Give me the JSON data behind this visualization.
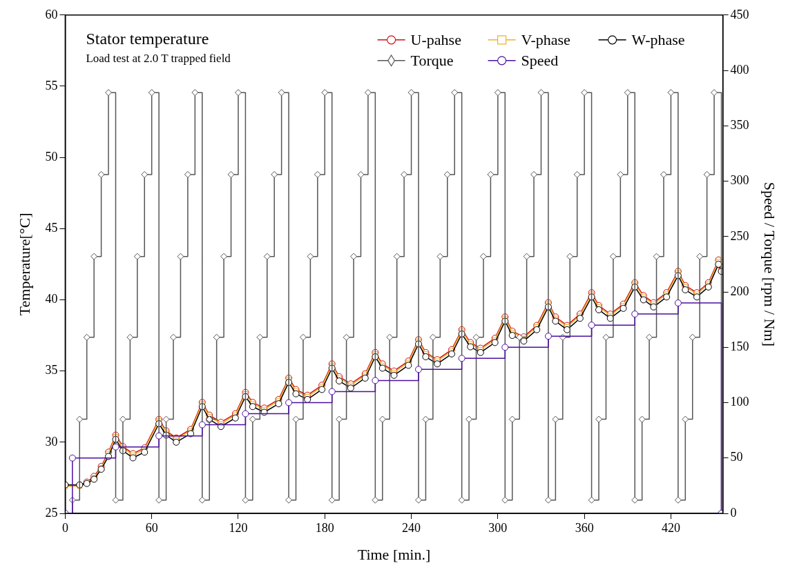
{
  "chart_data": {
    "type": "line",
    "title": "Stator temperature",
    "subtitle": "Load test at 2.0 T trapped field",
    "xlabel": "Time [min.]",
    "ylabel": "Temperature[°C]",
    "y2label": "Speed / Torque [rpm / Nm]",
    "x": [
      0,
      10,
      15,
      20,
      25,
      30,
      35,
      40,
      47,
      55,
      65,
      70,
      77,
      87,
      95,
      100,
      108,
      118,
      125,
      130,
      138,
      148,
      155,
      160,
      168,
      178,
      185,
      190,
      198,
      208,
      215,
      220,
      228,
      238,
      245,
      250,
      258,
      268,
      275,
      281,
      288,
      298,
      305,
      310,
      318,
      327,
      335,
      340,
      348,
      357,
      365,
      370,
      378,
      387,
      395,
      401,
      408,
      417,
      425,
      430,
      438,
      446,
      453,
      455
    ],
    "series": [
      {
        "name": "U-pahse",
        "color": "#d01010",
        "marker": "circle",
        "values": [
          27.0,
          27.0,
          27.2,
          27.6,
          28.3,
          29.3,
          30.5,
          29.7,
          29.2,
          29.6,
          31.6,
          30.8,
          30.3,
          30.9,
          32.8,
          31.9,
          31.4,
          32.0,
          33.5,
          32.8,
          32.4,
          33.0,
          34.5,
          33.7,
          33.3,
          34.0,
          35.5,
          34.6,
          34.1,
          34.8,
          36.3,
          35.5,
          35.0,
          35.7,
          37.2,
          36.3,
          35.8,
          36.5,
          37.9,
          37.0,
          36.6,
          37.3,
          38.8,
          37.8,
          37.4,
          38.2,
          39.8,
          38.8,
          38.2,
          39.0,
          40.5,
          39.6,
          39.0,
          39.7,
          41.2,
          40.3,
          39.8,
          40.5,
          42.0,
          41.0,
          40.5,
          41.2,
          42.8,
          42.3
        ]
      },
      {
        "name": "V-phase",
        "color": "#f0b030",
        "marker": "square",
        "values": [
          26.9,
          26.9,
          27.1,
          27.5,
          28.2,
          29.2,
          30.4,
          29.6,
          29.1,
          29.5,
          31.5,
          30.7,
          30.2,
          30.8,
          32.7,
          31.8,
          31.3,
          31.9,
          33.4,
          32.7,
          32.3,
          32.9,
          34.4,
          33.6,
          33.2,
          33.9,
          35.4,
          34.5,
          34.0,
          34.7,
          36.2,
          35.4,
          34.9,
          35.6,
          37.1,
          36.2,
          35.7,
          36.4,
          37.8,
          36.9,
          36.5,
          37.2,
          38.7,
          37.7,
          37.3,
          38.1,
          39.7,
          38.7,
          38.1,
          38.9,
          40.4,
          39.5,
          38.9,
          39.6,
          41.1,
          40.2,
          39.7,
          40.4,
          41.9,
          40.9,
          40.4,
          41.1,
          42.7,
          42.2
        ]
      },
      {
        "name": "W-phase",
        "color": "#000000",
        "marker": "circle",
        "values": [
          27.0,
          27.0,
          27.1,
          27.4,
          28.1,
          29.0,
          30.2,
          29.4,
          28.9,
          29.3,
          31.3,
          30.5,
          30.0,
          30.6,
          32.5,
          31.6,
          31.1,
          31.7,
          33.2,
          32.5,
          32.1,
          32.7,
          34.2,
          33.4,
          33.0,
          33.7,
          35.2,
          34.3,
          33.8,
          34.5,
          36.0,
          35.2,
          34.7,
          35.4,
          36.9,
          36.0,
          35.5,
          36.2,
          37.6,
          36.7,
          36.3,
          37.0,
          38.5,
          37.5,
          37.1,
          37.9,
          39.5,
          38.5,
          37.9,
          38.7,
          40.2,
          39.3,
          38.7,
          39.4,
          40.9,
          40.0,
          39.5,
          40.2,
          41.7,
          40.7,
          40.2,
          40.9,
          42.5,
          42.0
        ]
      },
      {
        "name": "Torque",
        "color": "#555555",
        "marker": "diamond",
        "type": "step",
        "axis": "y2",
        "x": [
          0,
          5,
          10,
          15,
          20,
          25,
          30,
          35,
          40,
          45,
          50,
          55,
          60,
          65,
          70,
          75,
          80,
          85,
          90,
          95,
          100,
          105,
          110,
          115,
          120,
          125,
          130,
          135,
          140,
          145,
          150,
          155,
          160,
          165,
          170,
          175,
          180,
          185,
          190,
          195,
          200,
          205,
          210,
          215,
          220,
          225,
          230,
          235,
          240,
          245,
          250,
          255,
          260,
          265,
          270,
          275,
          280,
          285,
          290,
          295,
          300,
          305,
          310,
          315,
          320,
          325,
          330,
          335,
          340,
          345,
          350,
          355,
          360,
          365,
          370,
          375,
          380,
          385,
          390,
          395,
          400,
          405,
          410,
          415,
          420,
          425,
          430,
          435,
          440,
          445,
          450,
          455
        ],
        "values": [
          0,
          12,
          85,
          159,
          232,
          306,
          380,
          12,
          85,
          159,
          232,
          306,
          380,
          12,
          85,
          159,
          232,
          306,
          380,
          12,
          85,
          159,
          232,
          306,
          380,
          12,
          85,
          159,
          232,
          306,
          380,
          12,
          85,
          159,
          232,
          306,
          380,
          12,
          85,
          159,
          232,
          306,
          380,
          12,
          85,
          159,
          232,
          306,
          380,
          12,
          85,
          159,
          232,
          306,
          380,
          12,
          85,
          159,
          232,
          306,
          380,
          12,
          85,
          159,
          232,
          306,
          380,
          12,
          85,
          159,
          232,
          306,
          380,
          12,
          85,
          159,
          232,
          306,
          380,
          12,
          85,
          159,
          232,
          306,
          380,
          12,
          85,
          159,
          232,
          306,
          380,
          0
        ]
      },
      {
        "name": "Speed",
        "color": "#4b0fa0",
        "marker": "circle",
        "type": "step",
        "axis": "y2",
        "x": [
          0,
          5,
          35,
          65,
          95,
          125,
          155,
          185,
          215,
          245,
          275,
          305,
          335,
          365,
          395,
          425,
          455
        ],
        "values": [
          0,
          50,
          60,
          70,
          80,
          90,
          100,
          110,
          120,
          130,
          140,
          150,
          160,
          170,
          180,
          190,
          0
        ]
      }
    ],
    "xlim": [
      0,
      456
    ],
    "xticks": [
      0,
      60,
      120,
      180,
      240,
      300,
      360,
      420
    ],
    "ylim": [
      25,
      60
    ],
    "yticks": [
      25,
      30,
      35,
      40,
      45,
      50,
      55,
      60
    ],
    "y2lim": [
      0,
      450
    ],
    "y2ticks": [
      0,
      50,
      100,
      150,
      200,
      250,
      300,
      350,
      400,
      450
    ],
    "grid": false,
    "legend": "top right"
  }
}
